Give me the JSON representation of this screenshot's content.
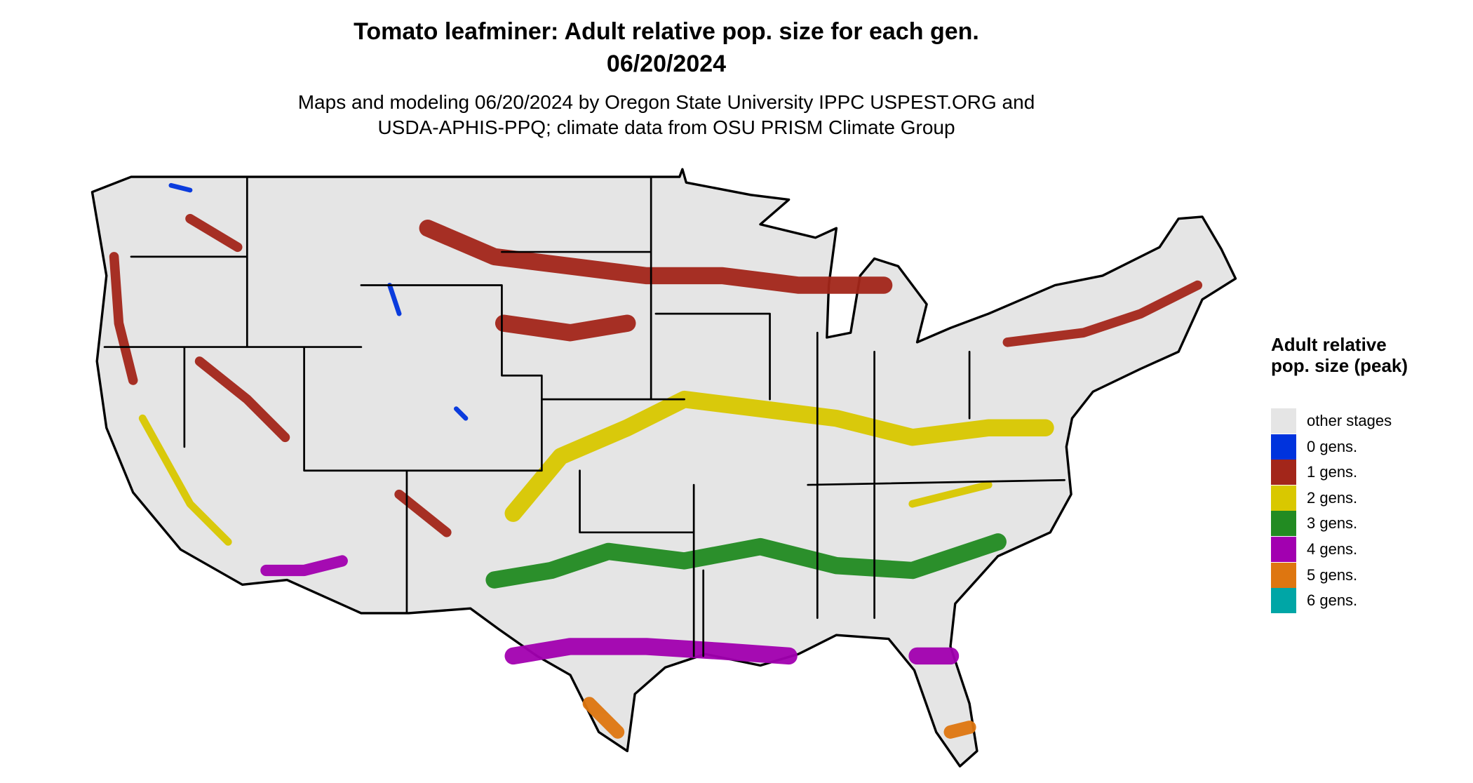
{
  "header": {
    "title_lines": [
      "Tomato leafminer: Adult relative pop. size for each gen.",
      "06/20/2024"
    ],
    "subtitle_lines": [
      "Maps and modeling 06/20/2024 by Oregon State University IPPC USPEST.ORG and",
      "USDA-APHIS-PPQ; climate data from OSU PRISM Climate Group"
    ]
  },
  "legend": {
    "title": "Adult relative pop. size (peak)",
    "items": [
      {
        "label": "other stages",
        "color": "#e5e5e5"
      },
      {
        "label": "0 gens.",
        "color": "#0033dd"
      },
      {
        "label": "1 gens.",
        "color": "#a3261a"
      },
      {
        "label": "2 gens.",
        "color": "#d9c800"
      },
      {
        "label": "3 gens.",
        "color": "#228b22"
      },
      {
        "label": "4 gens.",
        "color": "#a200b0"
      },
      {
        "label": "5 gens.",
        "color": "#de7610"
      },
      {
        "label": "6 gens.",
        "color": "#00a6a6"
      }
    ]
  }
}
